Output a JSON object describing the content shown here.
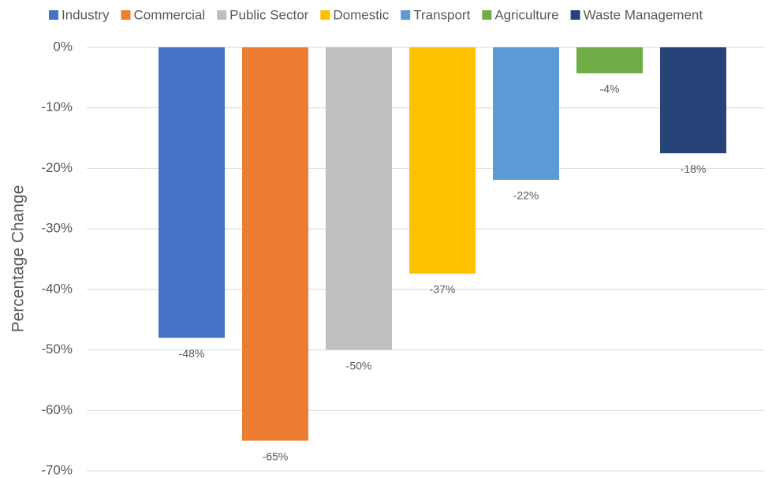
{
  "chart_data": {
    "type": "bar",
    "y_label": "Percentage Change",
    "series": [
      {
        "name": "Industry",
        "color": "#4472c4",
        "values": [
          -48
        ],
        "value_labels": [
          "-48%"
        ]
      },
      {
        "name": "Commercial",
        "color": "#ed7d31",
        "values": [
          -65
        ],
        "value_labels": [
          "-65%"
        ]
      },
      {
        "name": "Public Sector",
        "color": "#bfbfbf",
        "values": [
          -50
        ],
        "value_labels": [
          "-50%"
        ]
      },
      {
        "name": "Domestic",
        "color": "#ffc000",
        "values": [
          -37.4
        ],
        "value_labels": [
          "-37%"
        ]
      },
      {
        "name": "Transport",
        "color": "#5b9bd5",
        "values": [
          -21.9
        ],
        "value_labels": [
          "-22%"
        ]
      },
      {
        "name": "Agriculture",
        "color": "#70ad47",
        "values": [
          -4.3
        ],
        "value_labels": [
          "-4%"
        ]
      },
      {
        "name": "Waste Management",
        "color": "#264478",
        "values": [
          -17.5
        ],
        "value_labels": [
          "-18%"
        ]
      }
    ],
    "ylim": [
      -70,
      0
    ],
    "yticks": [
      {
        "value": 0,
        "label": "0%"
      },
      {
        "value": -10,
        "label": "-10%"
      },
      {
        "value": -20,
        "label": "-20%"
      },
      {
        "value": -30,
        "label": "-30%"
      },
      {
        "value": -40,
        "label": "-40%"
      },
      {
        "value": -50,
        "label": "-50%"
      },
      {
        "value": -60,
        "label": "-60%"
      },
      {
        "value": -70,
        "label": "-70%"
      }
    ],
    "grid": true,
    "legend": "top"
  }
}
